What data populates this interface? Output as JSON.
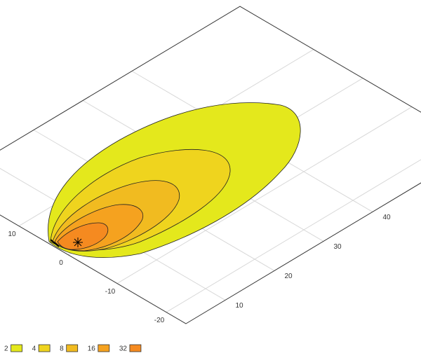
{
  "chart_data": {
    "type": "contour",
    "levels": [
      2,
      4,
      8,
      16,
      32
    ],
    "colors": [
      "#e4e81c",
      "#efd41e",
      "#f1bb20",
      "#f5a21f",
      "#f58a20"
    ],
    "xlim": [
      2,
      62
    ],
    "ylim": [
      -24,
      25
    ],
    "xticks": [
      10,
      20,
      30,
      40
    ],
    "yticks": [
      -20,
      -10,
      0,
      10
    ],
    "grid": true
  }
}
